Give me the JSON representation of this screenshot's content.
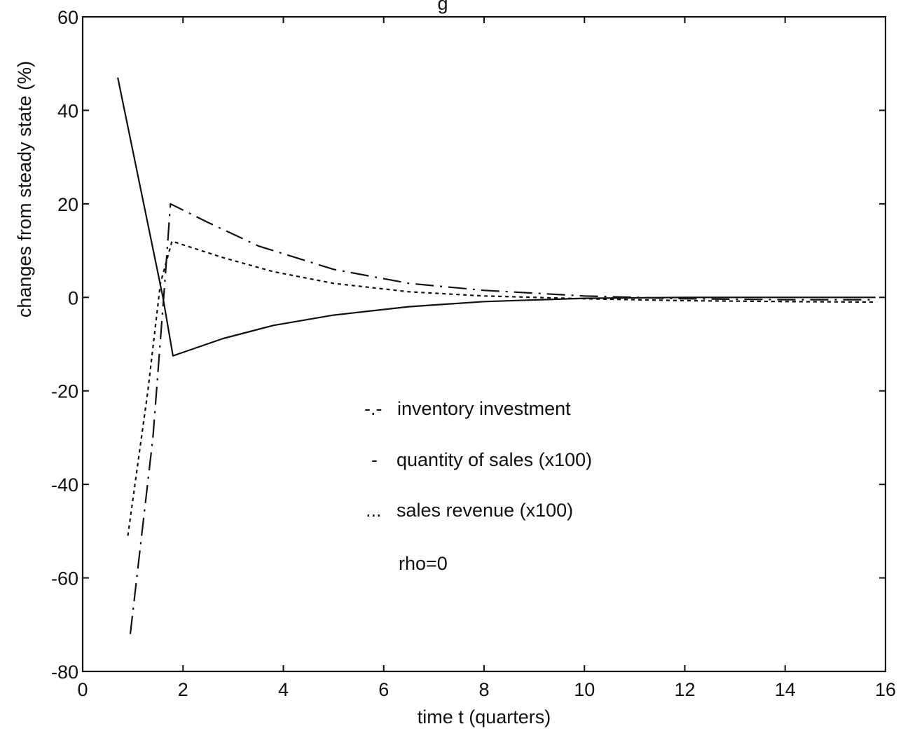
{
  "chart_data": {
    "type": "line",
    "title_fragment": "g",
    "xlabel": "time t (quarters)",
    "ylabel": "changes from steady state (%)",
    "xlim": [
      0,
      16
    ],
    "ylim": [
      -80,
      60
    ],
    "xticks": [
      0,
      2,
      4,
      6,
      8,
      10,
      12,
      14,
      16
    ],
    "yticks": [
      60,
      40,
      20,
      0,
      -20,
      -40,
      -60,
      -80
    ],
    "grid": false,
    "legend_position": "center",
    "annotation": "rho=0",
    "series": [
      {
        "legend_marker": "-.-",
        "name": "inventory investment",
        "style": "dashdot",
        "x": [
          0.95,
          1.4,
          1.65,
          1.75,
          2.5,
          3.5,
          5,
          6.5,
          8,
          10,
          12,
          14,
          15.8
        ],
        "y": [
          -72,
          -30,
          5,
          20,
          16,
          11,
          6,
          3,
          1.5,
          0.3,
          -0.3,
          -0.5,
          -0.5
        ]
      },
      {
        "legend_marker": "-",
        "name": "quantity of sales (x100)",
        "style": "solid",
        "x": [
          0.7,
          1.6,
          1.8,
          2.8,
          3.8,
          5,
          6.5,
          8,
          10,
          12,
          14,
          15.8
        ],
        "y": [
          47,
          0,
          -12.5,
          -8.8,
          -6,
          -3.8,
          -2,
          -0.9,
          -0.2,
          0,
          0,
          0
        ]
      },
      {
        "legend_marker": "...",
        "name": "sales revenue (x100)",
        "style": "dotted",
        "x": [
          0.9,
          1.3,
          1.55,
          1.78,
          2.8,
          3.8,
          5,
          6.5,
          8,
          10,
          12,
          14,
          15.8
        ],
        "y": [
          -51,
          -20,
          3,
          12,
          8.5,
          5.5,
          3,
          1.2,
          0.3,
          -0.3,
          -0.7,
          -0.9,
          -1
        ]
      }
    ]
  },
  "colors": {
    "background": "#ffffff",
    "ink": "#111111"
  }
}
